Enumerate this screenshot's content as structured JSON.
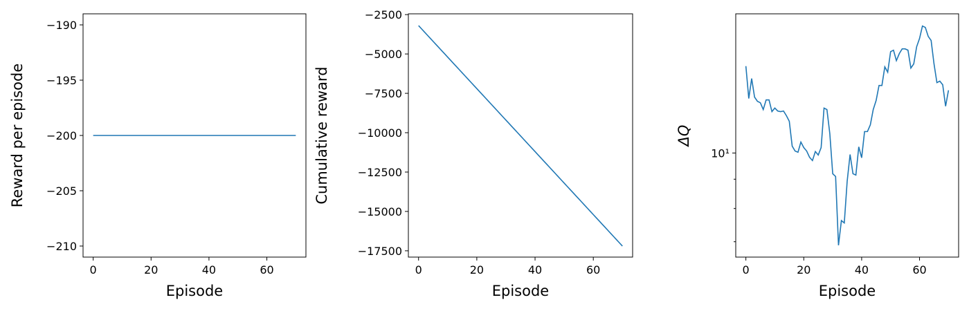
{
  "chart_data": [
    {
      "type": "line",
      "xlabel": "Episode",
      "ylabel": "Reward per episode",
      "x": [
        0,
        1,
        2,
        3,
        4,
        5,
        6,
        7,
        8,
        9,
        10,
        11,
        12,
        13,
        14,
        15,
        16,
        17,
        18,
        19,
        20,
        21,
        22,
        23,
        24,
        25,
        26,
        27,
        28,
        29,
        30,
        31,
        32,
        33,
        34,
        35,
        36,
        37,
        38,
        39,
        40,
        41,
        42,
        43,
        44,
        45,
        46,
        47,
        48,
        49,
        50,
        51,
        52,
        53,
        54,
        55,
        56,
        57,
        58,
        59,
        60,
        61,
        62,
        63,
        64,
        65,
        66,
        67,
        68,
        69,
        70
      ],
      "series": [
        {
          "color": "#1f77b4",
          "values": [
            -200,
            -200,
            -200,
            -200,
            -200,
            -200,
            -200,
            -200,
            -200,
            -200,
            -200,
            -200,
            -200,
            -200,
            -200,
            -200,
            -200,
            -200,
            -200,
            -200,
            -200,
            -200,
            -200,
            -200,
            -200,
            -200,
            -200,
            -200,
            -200,
            -200,
            -200,
            -200,
            -200,
            -200,
            -200,
            -200,
            -200,
            -200,
            -200,
            -200,
            -200,
            -200,
            -200,
            -200,
            -200,
            -200,
            -200,
            -200,
            -200,
            -200,
            -200,
            -200,
            -200,
            -200,
            -200,
            -200,
            -200,
            -200,
            -200,
            -200,
            -200,
            -200,
            -200,
            -200,
            -200,
            -200,
            -200,
            -200,
            -200,
            -200,
            -200
          ]
        }
      ],
      "xlim": [
        -3.5,
        73.5
      ],
      "xticks": [
        0,
        20,
        40,
        60
      ],
      "ylim": [
        -211,
        -189
      ],
      "yticks": [
        {
          "value": -190,
          "label": "−190"
        },
        {
          "value": -195,
          "label": "−195"
        },
        {
          "value": -200,
          "label": "−200"
        },
        {
          "value": -205,
          "label": "−205"
        },
        {
          "value": -210,
          "label": "−210"
        }
      ],
      "yscale": "linear"
    },
    {
      "type": "line",
      "xlabel": "Episode",
      "ylabel": "Cumulative reward",
      "x": [
        0,
        1,
        2,
        3,
        4,
        5,
        6,
        7,
        8,
        9,
        10,
        11,
        12,
        13,
        14,
        15,
        16,
        17,
        18,
        19,
        20,
        21,
        22,
        23,
        24,
        25,
        26,
        27,
        28,
        29,
        30,
        31,
        32,
        33,
        34,
        35,
        36,
        37,
        38,
        39,
        40,
        41,
        42,
        43,
        44,
        45,
        46,
        47,
        48,
        49,
        50,
        51,
        52,
        53,
        54,
        55,
        56,
        57,
        58,
        59,
        60,
        61,
        62,
        63,
        64,
        65,
        66,
        67,
        68,
        69,
        70
      ],
      "series": [
        {
          "color": "#1f77b4",
          "values": [
            -3200,
            -3400,
            -3600,
            -3800,
            -4000,
            -4200,
            -4400,
            -4600,
            -4800,
            -5000,
            -5200,
            -5400,
            -5600,
            -5800,
            -6000,
            -6200,
            -6400,
            -6600,
            -6800,
            -7000,
            -7200,
            -7400,
            -7600,
            -7800,
            -8000,
            -8200,
            -8400,
            -8600,
            -8800,
            -9000,
            -9200,
            -9400,
            -9600,
            -9800,
            -10000,
            -10200,
            -10400,
            -10600,
            -10800,
            -11000,
            -11200,
            -11400,
            -11600,
            -11800,
            -12000,
            -12200,
            -12400,
            -12600,
            -12800,
            -13000,
            -13200,
            -13400,
            -13600,
            -13800,
            -14000,
            -14200,
            -14400,
            -14600,
            -14800,
            -15000,
            -15200,
            -15400,
            -15600,
            -15800,
            -16000,
            -16200,
            -16400,
            -16600,
            -16800,
            -17000,
            -17200
          ]
        }
      ],
      "xlim": [
        -3.5,
        73.5
      ],
      "xticks": [
        0,
        20,
        40,
        60
      ],
      "ylim": [
        -17900,
        -2450
      ],
      "yticks": [
        {
          "value": -2500,
          "label": "−2500"
        },
        {
          "value": -5000,
          "label": "−5000"
        },
        {
          "value": -7500,
          "label": "−7500"
        },
        {
          "value": -10000,
          "label": "−10000"
        },
        {
          "value": -12500,
          "label": "−12500"
        },
        {
          "value": -15000,
          "label": "−15000"
        },
        {
          "value": -17500,
          "label": "−17500"
        }
      ],
      "yscale": "linear"
    },
    {
      "type": "line",
      "xlabel": "Episode",
      "ylabel": "ΔQ",
      "x": [
        0,
        1,
        2,
        3,
        4,
        5,
        6,
        7,
        8,
        9,
        10,
        11,
        12,
        13,
        14,
        15,
        16,
        17,
        18,
        19,
        20,
        21,
        22,
        23,
        24,
        25,
        26,
        27,
        28,
        29,
        30,
        31,
        32,
        33,
        34,
        35,
        36,
        37,
        38,
        39,
        40,
        41,
        42,
        43,
        44,
        45,
        46,
        47,
        48,
        49,
        50,
        51,
        52,
        53,
        54,
        55,
        56,
        57,
        58,
        59,
        60,
        61,
        62,
        63,
        64,
        65,
        66,
        67,
        68,
        69,
        70
      ],
      "series": [
        {
          "color": "#1f77b4",
          "values": [
            14.18,
            12.45,
            13.49,
            12.52,
            12.31,
            12.24,
            11.91,
            12.38,
            12.38,
            11.81,
            11.98,
            11.84,
            11.81,
            11.84,
            11.62,
            11.36,
            10.28,
            10.08,
            10.03,
            10.45,
            10.22,
            10.08,
            9.83,
            9.7,
            10.06,
            9.92,
            10.22,
            11.98,
            11.91,
            10.81,
            9.2,
            9.1,
            6.9,
            7.62,
            7.55,
            8.93,
            9.94,
            9.2,
            9.15,
            10.25,
            9.81,
            10.9,
            10.9,
            11.2,
            11.91,
            12.35,
            13.12,
            13.12,
            14.14,
            13.84,
            15.03,
            15.12,
            14.5,
            14.91,
            15.2,
            15.2,
            15.12,
            14.07,
            14.31,
            15.33,
            15.85,
            16.66,
            16.57,
            15.98,
            15.72,
            14.31,
            13.27,
            13.35,
            13.16,
            12.07,
            12.87
          ]
        }
      ],
      "xlim": [
        -3.5,
        73.5
      ],
      "xticks": [
        0,
        20,
        40,
        60
      ],
      "ylim": [
        6.58,
        17.5
      ],
      "yticks": [
        {
          "value": 10,
          "label": "10¹"
        }
      ],
      "yminorticks": [
        7,
        8,
        9
      ],
      "yscale": "log"
    }
  ]
}
